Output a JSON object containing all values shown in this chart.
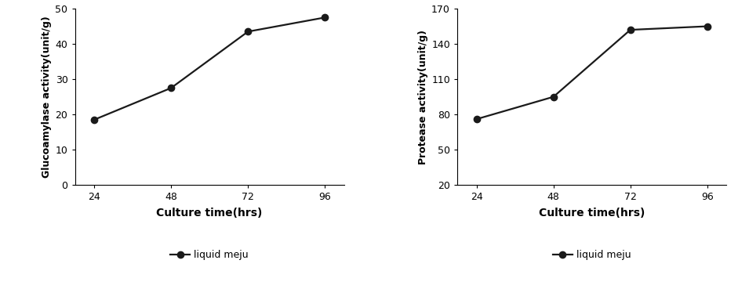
{
  "left_chart": {
    "x": [
      24,
      48,
      72,
      96
    ],
    "y": [
      18.5,
      27.5,
      43.5,
      47.5
    ],
    "xlabel": "Culture time(hrs)",
    "ylabel": "Glucoamylase activity(unit/g)",
    "ylim": [
      0,
      50
    ],
    "yticks": [
      0,
      10,
      20,
      30,
      40,
      50
    ],
    "xticks": [
      24,
      48,
      72,
      96
    ],
    "xlim": [
      18,
      102
    ],
    "legend_label": "liquid meju"
  },
  "right_chart": {
    "x": [
      24,
      48,
      72,
      96
    ],
    "y": [
      76,
      95,
      152,
      155
    ],
    "xlabel": "Culture time(hrs)",
    "ylabel": "Protease activity(unit/g)",
    "ylim": [
      20,
      170
    ],
    "yticks": [
      20,
      50,
      80,
      110,
      140,
      170
    ],
    "xticks": [
      24,
      48,
      72,
      96
    ],
    "xlim": [
      18,
      102
    ],
    "legend_label": "liquid meju"
  },
  "line_color": "#1a1a1a",
  "marker": "o",
  "markersize": 6,
  "linewidth": 1.6,
  "xlabel_fontsize": 10,
  "ylabel_fontsize": 9,
  "tick_fontsize": 9,
  "legend_fontsize": 9,
  "background_color": "#ffffff"
}
